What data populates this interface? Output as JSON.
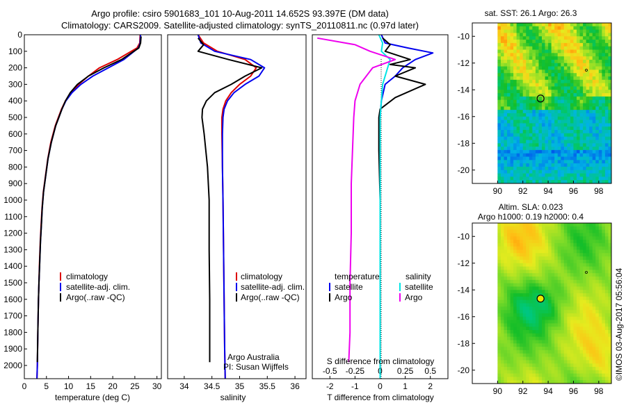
{
  "header": {
    "line1": "Argo profile: csiro 5901683_101 10-Aug-2011 14.652S 93.397E (DM data)",
    "line2": "Climatology: CARS2009. Satellite-adjusted climatology: synTS_20110811.nc (0.97d later)"
  },
  "colors": {
    "climatology": "#dd0000",
    "satellite": "#0000ee",
    "argo": "#000000",
    "salinity_sat": "#00e5e5",
    "salinity_argo": "#ee00ee"
  },
  "chart_data": [
    {
      "type": "line",
      "id": "temperature",
      "xlabel": "temperature (deg C)",
      "xlim": [
        0,
        31
      ],
      "ylim": [
        2080,
        0
      ],
      "xticks": [
        0,
        5,
        10,
        15,
        20,
        25,
        30
      ],
      "yticks": [
        0,
        100,
        200,
        300,
        400,
        500,
        600,
        700,
        800,
        900,
        1000,
        1100,
        1200,
        1300,
        1400,
        1500,
        1600,
        1700,
        1800,
        1900,
        2000
      ],
      "legend": [
        "climatology",
        "satellite-adj. clim.",
        "Argo(..raw -QC)"
      ],
      "series": [
        {
          "name": "climatology",
          "color": "#dd0000",
          "x": [
            26.2,
            26.1,
            25.5,
            21.0,
            17.0,
            14.5,
            12.3,
            10.5,
            9.3,
            8.4,
            7.7,
            7.0,
            6.0,
            5.3,
            4.8,
            4.3,
            4.0,
            3.8,
            3.6,
            3.4,
            3.3,
            3.2,
            3.05,
            2.95,
            2.85
          ],
          "y": [
            0,
            50,
            80,
            150,
            200,
            250,
            300,
            350,
            400,
            450,
            500,
            550,
            650,
            750,
            850,
            950,
            1050,
            1150,
            1250,
            1400,
            1500,
            1600,
            1800,
            2000,
            2080
          ]
        },
        {
          "name": "satellite-adj. clim.",
          "color": "#0000ee",
          "x": [
            26.3,
            26.2,
            25.8,
            22.5,
            19.0,
            15.5,
            12.8,
            10.8,
            9.4,
            8.5,
            7.8,
            7.1,
            6.1,
            5.35,
            4.85,
            4.35,
            4.05,
            3.85,
            3.65,
            3.45,
            3.3,
            3.2,
            3.05,
            2.95,
            2.85
          ],
          "y": [
            0,
            50,
            80,
            150,
            200,
            250,
            300,
            350,
            400,
            450,
            500,
            550,
            650,
            750,
            850,
            950,
            1050,
            1150,
            1250,
            1400,
            1500,
            1600,
            1800,
            2000,
            2080
          ]
        },
        {
          "name": "Argo(..raw -QC)",
          "color": "#000000",
          "x": [
            26.4,
            26.3,
            25.9,
            22.0,
            18.0,
            14.5,
            12.0,
            10.4,
            9.3,
            8.5,
            7.8,
            7.1,
            6.1,
            5.35,
            4.85,
            4.35,
            4.05,
            3.85,
            3.65,
            3.45,
            3.3,
            3.2,
            3.05,
            2.95
          ],
          "y": [
            10,
            50,
            80,
            150,
            200,
            250,
            300,
            350,
            400,
            450,
            500,
            550,
            650,
            750,
            850,
            950,
            1050,
            1150,
            1250,
            1400,
            1500,
            1600,
            1800,
            1980
          ]
        }
      ]
    },
    {
      "type": "line",
      "id": "salinity",
      "xlabel": "salinity",
      "xlim": [
        33.7,
        36.2
      ],
      "ylim": [
        2080,
        0
      ],
      "xticks": [
        34,
        34.5,
        35,
        35.5,
        36
      ],
      "legend": [
        "climatology",
        "satellite-adj. clim.",
        "Argo(..raw -QC)"
      ],
      "annotation": [
        "Argo Australia",
        "PI: Susan Wijffels"
      ],
      "series": [
        {
          "name": "climatology",
          "color": "#dd0000",
          "x": [
            34.25,
            34.35,
            34.6,
            35.1,
            35.3,
            35.2,
            35.0,
            34.85,
            34.75,
            34.7,
            34.68,
            34.68,
            34.69,
            34.7,
            34.71,
            34.72,
            34.73,
            34.74
          ],
          "y": [
            0,
            50,
            100,
            150,
            200,
            250,
            300,
            350,
            400,
            450,
            500,
            600,
            800,
            1000,
            1300,
            1600,
            1900,
            2080
          ]
        },
        {
          "name": "satellite-adj. clim.",
          "color": "#0000ee",
          "x": [
            34.25,
            34.3,
            34.55,
            35.2,
            35.45,
            35.35,
            35.1,
            34.9,
            34.78,
            34.72,
            34.7,
            34.69,
            34.69,
            34.7,
            34.71,
            34.72,
            34.73,
            34.74
          ],
          "y": [
            0,
            50,
            100,
            150,
            200,
            250,
            300,
            350,
            400,
            450,
            500,
            600,
            800,
            1000,
            1300,
            1600,
            1900,
            2080
          ]
        },
        {
          "name": "Argo(..raw -QC)",
          "color": "#000000",
          "x": [
            34.25,
            34.35,
            34.25,
            34.8,
            35.4,
            35.1,
            34.85,
            34.55,
            34.4,
            34.33,
            34.32,
            34.36,
            34.42,
            34.45,
            34.45,
            34.46,
            34.46,
            34.46
          ],
          "y": [
            20,
            60,
            100,
            150,
            200,
            250,
            300,
            350,
            400,
            450,
            500,
            600,
            800,
            1000,
            1300,
            1600,
            1800,
            1980
          ]
        }
      ]
    },
    {
      "type": "line",
      "id": "difference",
      "xlabel": "T difference from climatology",
      "xlabel_top": "S difference from climatology",
      "xlim": [
        -2.7,
        2.7
      ],
      "ylim": [
        2080,
        0
      ],
      "xticks": [
        -2,
        -1,
        0,
        1,
        2
      ],
      "xticks_top": [
        -0.5,
        -0.25,
        0,
        0.25,
        0.5
      ],
      "legend_temperature": [
        "temperature",
        "satellite",
        "Argo"
      ],
      "legend_salinity": [
        "salinity",
        "satellite",
        "Argo"
      ],
      "series": [
        {
          "name": "temperature satellite",
          "color": "#0000ee",
          "x": [
            0.05,
            0.2,
            1.1,
            2.1,
            1.4,
            0.9,
            0.6,
            0.2,
            0.05,
            0.0,
            0.0,
            0.0,
            0.0,
            0.0,
            0.0
          ],
          "y": [
            0,
            50,
            80,
            110,
            150,
            200,
            250,
            300,
            400,
            500,
            700,
            1000,
            1400,
            1800,
            2080
          ]
        },
        {
          "name": "temperature Argo",
          "color": "#000000",
          "x": [
            0.1,
            0.4,
            0.2,
            1.2,
            0.4,
            1.4,
            0.6,
            1.8,
            0.6,
            0.0,
            -0.05,
            -0.05,
            0.0,
            0.0,
            0.0,
            0.0
          ],
          "y": [
            20,
            60,
            100,
            150,
            180,
            200,
            250,
            300,
            380,
            450,
            500,
            700,
            1000,
            1400,
            1800,
            1980
          ]
        },
        {
          "name": "salinity satellite",
          "color": "#00e5e5",
          "x": [
            -0.05,
            0.1,
            0.05,
            0.4,
            0.3,
            0.1,
            0.05,
            0.0,
            0.0,
            0.0,
            0.0,
            0.0
          ],
          "y": [
            0,
            50,
            100,
            150,
            200,
            300,
            400,
            500,
            700,
            1000,
            1400,
            2080
          ]
        },
        {
          "name": "salinity Argo",
          "color": "#ee00ee",
          "x": [
            -2.5,
            -1.0,
            -0.4,
            0.6,
            -0.3,
            -0.8,
            -1.0,
            -1.05,
            -1.1,
            -1.15,
            -1.15,
            -1.2,
            -1.2,
            -1.25
          ],
          "y": [
            20,
            60,
            100,
            150,
            200,
            300,
            400,
            500,
            700,
            900,
            1200,
            1500,
            1800,
            1980
          ]
        }
      ]
    },
    {
      "type": "heatmap",
      "id": "sst-map",
      "title": "sat. SST: 26.1  Argo: 26.3",
      "xlim": [
        88,
        99
      ],
      "ylim": [
        -21,
        -9
      ],
      "xticks": [
        90,
        92,
        94,
        96,
        98
      ],
      "yticks": [
        -10,
        -12,
        -14,
        -16,
        -18,
        -20
      ],
      "marker": {
        "lon": 93.4,
        "lat": -14.65
      }
    },
    {
      "type": "heatmap",
      "id": "sla-map",
      "title": "Altim. SLA: 0.023",
      "subtitle": "Argo h1000: 0.19 h2000: 0.4",
      "xlim": [
        88,
        99
      ],
      "ylim": [
        -21,
        -9
      ],
      "xticks": [
        90,
        92,
        94,
        96,
        98
      ],
      "yticks": [
        -10,
        -12,
        -14,
        -16,
        -18,
        -20
      ],
      "marker": {
        "lon": 93.4,
        "lat": -14.65
      }
    }
  ],
  "footer": {
    "watermark": "©IMOS 03-Aug-2017 05:56:04"
  }
}
